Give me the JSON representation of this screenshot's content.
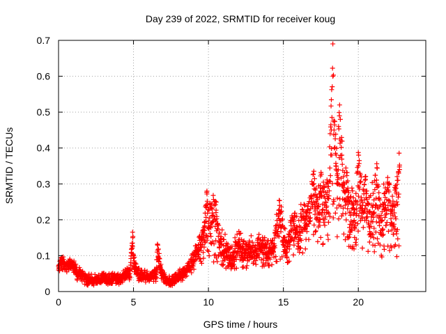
{
  "chart_data": {
    "type": "scatter",
    "title": "Day 239 of 2022, SRMTID for receiver koug",
    "xlabel": "GPS time / hours",
    "ylabel": "SRMTID / TECUs",
    "xlim": [
      0,
      24.5
    ],
    "ylim": [
      0,
      0.7
    ],
    "xticks": [
      0,
      5,
      10,
      15,
      20
    ],
    "xtick_labels": [
      "0",
      "5",
      "10",
      "15",
      "20"
    ],
    "yticks": [
      0,
      0.1,
      0.2,
      0.3,
      0.4,
      0.5,
      0.6,
      0.7
    ],
    "ytick_labels": [
      "0",
      "0.1",
      "0.2",
      "0.3",
      "0.4",
      "0.5",
      "0.6",
      "0.7"
    ],
    "grid": true,
    "marker": "plus",
    "color": "#ff0000",
    "series": [
      {
        "name": "koug",
        "x": [
          0.0,
          0.25,
          0.5,
          0.75,
          1.0,
          1.25,
          1.5,
          1.75,
          2.0,
          2.25,
          2.5,
          2.75,
          3.0,
          3.25,
          3.5,
          3.75,
          4.0,
          4.25,
          4.5,
          4.75,
          4.95,
          5.0,
          5.1,
          5.25,
          5.5,
          5.75,
          6.0,
          6.25,
          6.5,
          6.6,
          6.75,
          7.0,
          7.25,
          7.5,
          7.75,
          8.0,
          8.25,
          8.5,
          8.75,
          9.0,
          9.25,
          9.5,
          9.75,
          9.9,
          10.0,
          10.25,
          10.5,
          10.75,
          11.0,
          11.25,
          11.5,
          11.75,
          12.0,
          12.25,
          12.5,
          12.75,
          13.0,
          13.25,
          13.5,
          13.75,
          14.0,
          14.25,
          14.5,
          14.75,
          15.0,
          15.25,
          15.5,
          15.75,
          16.0,
          16.25,
          16.5,
          16.75,
          17.0,
          17.25,
          17.5,
          17.75,
          18.0,
          18.2,
          18.3,
          18.4,
          18.5,
          18.6,
          18.75,
          18.9,
          19.0,
          19.25,
          19.5,
          19.75,
          20.0,
          20.25,
          20.5,
          20.75,
          21.0,
          21.25,
          21.5,
          21.75,
          22.0,
          22.25,
          22.5,
          22.75
        ],
        "y": [
          0.07,
          0.08,
          0.07,
          0.08,
          0.07,
          0.05,
          0.05,
          0.04,
          0.03,
          0.03,
          0.03,
          0.03,
          0.04,
          0.03,
          0.03,
          0.04,
          0.03,
          0.04,
          0.05,
          0.05,
          0.15,
          0.1,
          0.07,
          0.05,
          0.04,
          0.04,
          0.04,
          0.05,
          0.04,
          0.13,
          0.07,
          0.04,
          0.03,
          0.03,
          0.03,
          0.04,
          0.05,
          0.06,
          0.07,
          0.09,
          0.11,
          0.13,
          0.17,
          0.28,
          0.19,
          0.23,
          0.22,
          0.14,
          0.1,
          0.12,
          0.08,
          0.11,
          0.13,
          0.1,
          0.11,
          0.12,
          0.11,
          0.12,
          0.13,
          0.12,
          0.11,
          0.12,
          0.16,
          0.24,
          0.15,
          0.11,
          0.17,
          0.18,
          0.14,
          0.21,
          0.2,
          0.22,
          0.3,
          0.23,
          0.28,
          0.22,
          0.26,
          0.45,
          0.6,
          0.4,
          0.35,
          0.3,
          0.52,
          0.38,
          0.3,
          0.26,
          0.22,
          0.18,
          0.35,
          0.22,
          0.28,
          0.18,
          0.24,
          0.29,
          0.17,
          0.23,
          0.3,
          0.19,
          0.24,
          0.34
        ],
        "band_low": [
          0.05,
          0.06,
          0.05,
          0.06,
          0.05,
          0.03,
          0.03,
          0.02,
          0.015,
          0.015,
          0.015,
          0.02,
          0.025,
          0.02,
          0.02,
          0.02,
          0.02,
          0.025,
          0.03,
          0.03,
          0.06,
          0.05,
          0.04,
          0.03,
          0.025,
          0.025,
          0.025,
          0.03,
          0.025,
          0.05,
          0.04,
          0.025,
          0.015,
          0.015,
          0.02,
          0.025,
          0.03,
          0.04,
          0.04,
          0.05,
          0.06,
          0.07,
          0.09,
          0.11,
          0.1,
          0.07,
          0.07,
          0.07,
          0.06,
          0.06,
          0.05,
          0.06,
          0.07,
          0.06,
          0.06,
          0.07,
          0.07,
          0.07,
          0.07,
          0.07,
          0.07,
          0.07,
          0.08,
          0.09,
          0.09,
          0.07,
          0.08,
          0.1,
          0.09,
          0.1,
          0.12,
          0.12,
          0.15,
          0.12,
          0.14,
          0.12,
          0.14,
          0.18,
          0.2,
          0.18,
          0.16,
          0.15,
          0.17,
          0.16,
          0.15,
          0.13,
          0.12,
          0.1,
          0.14,
          0.11,
          0.12,
          0.1,
          0.1,
          0.12,
          0.09,
          0.1,
          0.12,
          0.09,
          0.08,
          0.11
        ],
        "band_high": [
          0.09,
          0.1,
          0.09,
          0.1,
          0.09,
          0.07,
          0.07,
          0.06,
          0.05,
          0.05,
          0.05,
          0.05,
          0.055,
          0.05,
          0.05,
          0.055,
          0.05,
          0.055,
          0.065,
          0.07,
          0.16,
          0.12,
          0.09,
          0.07,
          0.06,
          0.06,
          0.06,
          0.065,
          0.06,
          0.14,
          0.09,
          0.06,
          0.045,
          0.045,
          0.05,
          0.06,
          0.07,
          0.08,
          0.09,
          0.12,
          0.14,
          0.17,
          0.2,
          0.29,
          0.24,
          0.25,
          0.24,
          0.19,
          0.16,
          0.17,
          0.13,
          0.15,
          0.18,
          0.15,
          0.15,
          0.16,
          0.16,
          0.16,
          0.16,
          0.16,
          0.15,
          0.16,
          0.21,
          0.26,
          0.21,
          0.14,
          0.22,
          0.23,
          0.2,
          0.27,
          0.26,
          0.28,
          0.34,
          0.3,
          0.34,
          0.29,
          0.33,
          0.55,
          0.62,
          0.5,
          0.45,
          0.4,
          0.53,
          0.44,
          0.37,
          0.33,
          0.3,
          0.26,
          0.37,
          0.3,
          0.35,
          0.26,
          0.34,
          0.36,
          0.26,
          0.32,
          0.35,
          0.28,
          0.33,
          0.37
        ]
      }
    ]
  }
}
